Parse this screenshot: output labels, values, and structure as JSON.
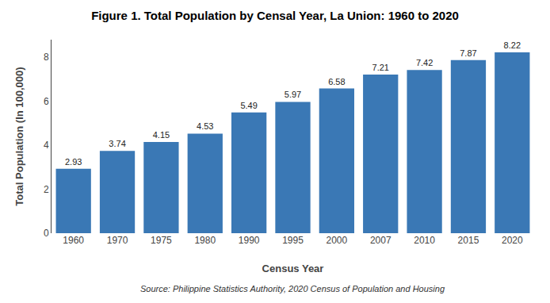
{
  "chart_data": {
    "type": "bar",
    "title": "Figure 1. Total Population by Censal Year, La Union: 1960 to 2020",
    "xlabel": "Census Year",
    "ylabel": "Total Population (In 100,000)",
    "annotations": [
      "Source: Philippine Statistics Authority, 2020 Census of Population and Housing"
    ],
    "categories": [
      "1960",
      "1970",
      "1975",
      "1980",
      "1990",
      "1995",
      "2000",
      "2007",
      "2010",
      "2015",
      "2020"
    ],
    "values": [
      2.93,
      3.74,
      4.15,
      4.53,
      5.49,
      5.97,
      6.58,
      7.21,
      7.42,
      7.87,
      8.22
    ],
    "color": "#3a78b5",
    "ylim": [
      0,
      8.8
    ],
    "yticks": [
      0,
      2,
      4,
      6,
      8
    ],
    "grid": false,
    "data_labels": true
  }
}
